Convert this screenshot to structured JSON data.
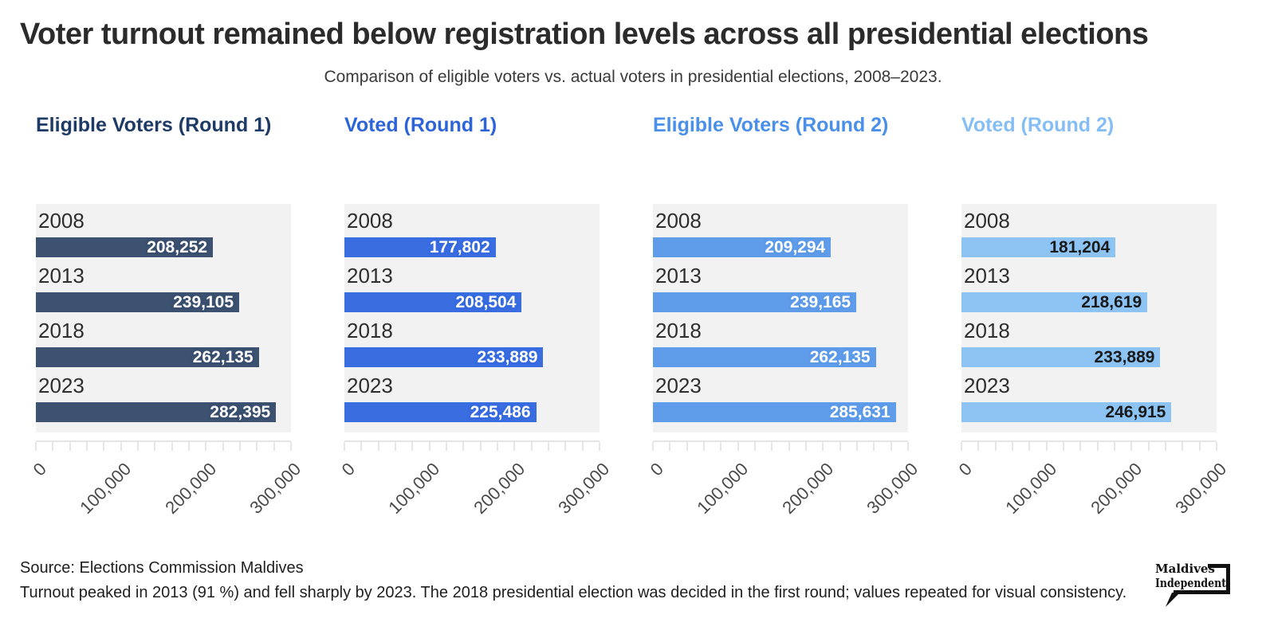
{
  "header": {
    "title": "Voter turnout remained below registration levels across all presidential elections",
    "subtitle": "Comparison of eligible voters vs. actual voters in presidential elections, 2008–2023."
  },
  "chart_data": {
    "type": "bar",
    "orientation": "horizontal",
    "layout": "four small multiples sharing one x-scale",
    "categories": [
      "2008",
      "2013",
      "2018",
      "2023"
    ],
    "series": [
      {
        "name": "Eligible Voters (Round 1)",
        "bar_color": "#3d5271",
        "header_color": "#1e3a66",
        "value_text_color": "#ffffff",
        "values": [
          208252,
          239105,
          262135,
          282395
        ]
      },
      {
        "name": "Voted (Round 1)",
        "bar_color": "#3a6de0",
        "header_color": "#2e64d9",
        "value_text_color": "#ffffff",
        "values": [
          177802,
          208504,
          233889,
          225486
        ]
      },
      {
        "name": "Eligible Voters (Round 2)",
        "bar_color": "#5f9ce9",
        "header_color": "#4a90ea",
        "value_text_color": "#ffffff",
        "values": [
          209294,
          239165,
          262135,
          285631
        ]
      },
      {
        "name": "Voted (Round 2)",
        "bar_color": "#8ec4f4",
        "header_color": "#85bdf5",
        "value_text_color": "#1a1a1a",
        "values": [
          181204,
          218619,
          233889,
          246915
        ]
      }
    ],
    "xlim": [
      0,
      300000
    ],
    "x_ticks": [
      0,
      100000,
      200000,
      300000
    ],
    "x_tick_labels": [
      "0",
      "100,000",
      "200,000",
      "300,000"
    ],
    "minor_tick_step": 20000,
    "grid": false,
    "legend_position": "column-headers"
  },
  "footer": {
    "source": "Source: Elections Commission Maldives",
    "note": "Turnout peaked in 2013 (91 %) and fell sharply by 2023. The 2018 presidential election was decided in the first round; values repeated for visual consistency."
  },
  "logo": {
    "line1": "Maldives",
    "line2": "Independent"
  },
  "colors": {
    "page_background": "#ffffff",
    "panel_background": "#f2f2f2",
    "axis_tick": "#e6e6e6",
    "axis_label": "#4a4a4a",
    "year_label": "#2e2e2e",
    "title": "#2b2b2b",
    "subtitle": "#3a3a3a",
    "footer_text": "#1f1f1f"
  }
}
